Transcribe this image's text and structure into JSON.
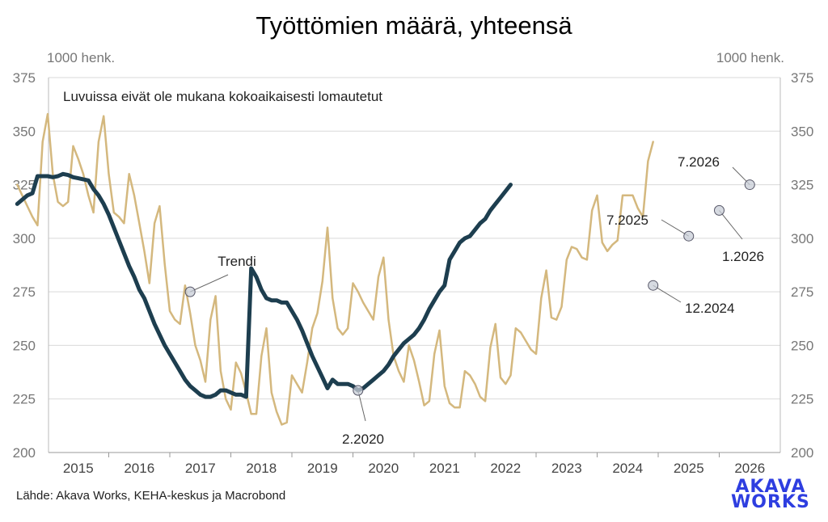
{
  "title": "Työttömien määrä, yhteensä",
  "source": "Lähde: Akava Works, KEHA-keskus ja Macrobond",
  "logo": [
    "AKAVA",
    "WORKS"
  ],
  "colors": {
    "trend": "#1d3e4f",
    "monthly": "#d4b87e",
    "logo": "#2e3ee0",
    "grid": "#d9d9d9"
  },
  "chart_data": {
    "type": "line",
    "title": "Työttömien määrä, yhteensä",
    "subtitle": "Luvuissa eivät ole mukana kokoaikaisesti lomautetut",
    "ylabel_left": "1000 henk.",
    "ylabel_right": "1000 henk.",
    "ylim": [
      200,
      375
    ],
    "yticks": [
      200,
      225,
      250,
      275,
      300,
      325,
      350,
      375
    ],
    "x_start": "2014-07",
    "xticks": [
      "2015",
      "2016",
      "2017",
      "2018",
      "2019",
      "2020",
      "2021",
      "2022",
      "2023",
      "2024",
      "2025",
      "2026"
    ],
    "grid": true,
    "series": [
      {
        "name": "",
        "style": "monthly",
        "values": [
          325,
          320,
          315,
          310,
          306,
          345,
          358,
          330,
          317,
          315,
          317,
          343,
          337,
          330,
          320,
          312,
          345,
          357,
          330,
          312,
          310,
          307,
          330,
          320,
          307,
          294,
          279,
          307,
          315,
          288,
          266,
          262,
          260,
          278,
          265,
          250,
          243,
          233,
          262,
          273,
          238,
          225,
          220,
          242,
          237,
          228,
          218,
          218,
          245,
          258,
          228,
          219,
          213,
          214,
          236,
          232,
          228,
          242,
          258,
          265,
          280,
          305,
          272,
          258,
          255,
          258,
          279,
          275,
          270,
          266,
          262,
          282,
          291,
          262,
          245,
          238,
          233,
          250,
          243,
          233,
          222,
          224,
          246,
          257,
          231,
          223,
          221,
          221,
          238,
          236,
          232,
          226,
          224,
          249,
          260,
          235,
          232,
          236,
          258,
          256,
          252,
          248,
          246,
          272,
          285,
          263,
          262,
          268,
          290,
          296,
          295,
          291,
          290,
          313,
          320,
          298,
          294,
          297,
          299,
          320,
          320,
          320,
          314,
          310,
          336,
          345
        ]
      },
      {
        "name": "Trendi",
        "style": "trend",
        "values": [
          316,
          318,
          320,
          321,
          329,
          329,
          329,
          328.5,
          329,
          330,
          329.5,
          328.5,
          328,
          327.5,
          327,
          323,
          320,
          316,
          311,
          305,
          299,
          293,
          287,
          282,
          276,
          272,
          266,
          260,
          255,
          250,
          246,
          242,
          238,
          234,
          231,
          229,
          227,
          226,
          226,
          227,
          229,
          229,
          228,
          227,
          227,
          226,
          286,
          282,
          276,
          272,
          271,
          271,
          270,
          270,
          266,
          262,
          257,
          251,
          245,
          240,
          235,
          230,
          234,
          232,
          232,
          232,
          231,
          229,
          230,
          232,
          234,
          236,
          238,
          241,
          245,
          248,
          251,
          253,
          255,
          258,
          262,
          267,
          271,
          275,
          278,
          290,
          294,
          298,
          300,
          301,
          304,
          307,
          309,
          313,
          316,
          319,
          322,
          325
        ]
      }
    ],
    "annotations": [
      {
        "label": "Trendi",
        "date": "2017-05",
        "value": 275
      },
      {
        "label": "2.2020",
        "date": "2020-02",
        "value": 229
      },
      {
        "label": "12.2024",
        "date": "2024-12",
        "value": 278
      },
      {
        "label": "7.2025",
        "date": "2025-07",
        "value": 301
      },
      {
        "label": "1.2026",
        "date": "2026-01",
        "value": 313
      },
      {
        "label": "7.2026",
        "date": "2026-07",
        "value": 325
      }
    ]
  }
}
